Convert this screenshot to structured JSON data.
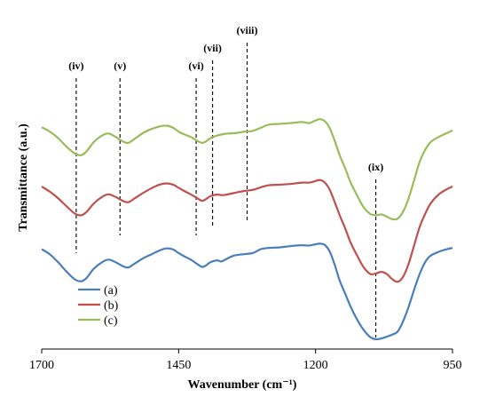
{
  "chart_data": {
    "type": "line",
    "title": "",
    "xlabel": "Wavenumber (cm⁻¹)",
    "ylabel": "Transmittance (a.u.)",
    "xlim": [
      1700,
      950
    ],
    "x_reversed": true,
    "x_ticks": [
      1700,
      1450,
      1200,
      950
    ],
    "y_ticks_shown": false,
    "grid": false,
    "legend_position": "bottom-left",
    "series": [
      {
        "name": "(a)",
        "color": "#4a7ebb",
        "points": [
          [
            1700,
            0.345
          ],
          [
            1685,
            0.325
          ],
          [
            1670,
            0.295
          ],
          [
            1655,
            0.26
          ],
          [
            1640,
            0.23
          ],
          [
            1628,
            0.222
          ],
          [
            1618,
            0.235
          ],
          [
            1605,
            0.27
          ],
          [
            1590,
            0.295
          ],
          [
            1578,
            0.305
          ],
          [
            1565,
            0.295
          ],
          [
            1552,
            0.28
          ],
          [
            1542,
            0.275
          ],
          [
            1530,
            0.29
          ],
          [
            1515,
            0.31
          ],
          [
            1500,
            0.325
          ],
          [
            1485,
            0.34
          ],
          [
            1472,
            0.348
          ],
          [
            1460,
            0.344
          ],
          [
            1450,
            0.33
          ],
          [
            1440,
            0.318
          ],
          [
            1428,
            0.305
          ],
          [
            1416,
            0.288
          ],
          [
            1407,
            0.277
          ],
          [
            1400,
            0.283
          ],
          [
            1392,
            0.295
          ],
          [
            1380,
            0.302
          ],
          [
            1372,
            0.298
          ],
          [
            1365,
            0.305
          ],
          [
            1350,
            0.32
          ],
          [
            1335,
            0.325
          ],
          [
            1315,
            0.33
          ],
          [
            1300,
            0.345
          ],
          [
            1285,
            0.35
          ],
          [
            1265,
            0.352
          ],
          [
            1245,
            0.357
          ],
          [
            1225,
            0.36
          ],
          [
            1212,
            0.359
          ],
          [
            1200,
            0.364
          ],
          [
            1192,
            0.366
          ],
          [
            1183,
            0.361
          ],
          [
            1174,
            0.335
          ],
          [
            1165,
            0.285
          ],
          [
            1156,
            0.225
          ],
          [
            1146,
            0.175
          ],
          [
            1136,
            0.125
          ],
          [
            1124,
            0.075
          ],
          [
            1112,
            0.035
          ],
          [
            1100,
            0.008
          ],
          [
            1090,
            0.0
          ],
          [
            1080,
            0.003
          ],
          [
            1070,
            0.01
          ],
          [
            1060,
            0.018
          ],
          [
            1050,
            0.03
          ],
          [
            1040,
            0.07
          ],
          [
            1030,
            0.125
          ],
          [
            1020,
            0.19
          ],
          [
            1010,
            0.25
          ],
          [
            1000,
            0.295
          ],
          [
            990,
            0.32
          ],
          [
            975,
            0.335
          ],
          [
            960,
            0.345
          ],
          [
            950,
            0.35
          ]
        ]
      },
      {
        "name": "(b)",
        "color": "#c0504d",
        "points": [
          [
            1700,
            0.585
          ],
          [
            1685,
            0.565
          ],
          [
            1670,
            0.54
          ],
          [
            1655,
            0.51
          ],
          [
            1640,
            0.482
          ],
          [
            1628,
            0.475
          ],
          [
            1618,
            0.488
          ],
          [
            1605,
            0.52
          ],
          [
            1590,
            0.545
          ],
          [
            1578,
            0.555
          ],
          [
            1565,
            0.545
          ],
          [
            1552,
            0.53
          ],
          [
            1542,
            0.525
          ],
          [
            1530,
            0.54
          ],
          [
            1515,
            0.56
          ],
          [
            1500,
            0.578
          ],
          [
            1485,
            0.592
          ],
          [
            1472,
            0.597
          ],
          [
            1460,
            0.592
          ],
          [
            1450,
            0.58
          ],
          [
            1440,
            0.568
          ],
          [
            1428,
            0.555
          ],
          [
            1416,
            0.54
          ],
          [
            1407,
            0.53
          ],
          [
            1400,
            0.537
          ],
          [
            1392,
            0.548
          ],
          [
            1380,
            0.554
          ],
          [
            1370,
            0.552
          ],
          [
            1360,
            0.555
          ],
          [
            1345,
            0.562
          ],
          [
            1330,
            0.568
          ],
          [
            1315,
            0.572
          ],
          [
            1300,
            0.582
          ],
          [
            1285,
            0.59
          ],
          [
            1265,
            0.592
          ],
          [
            1245,
            0.595
          ],
          [
            1225,
            0.6
          ],
          [
            1212,
            0.6
          ],
          [
            1200,
            0.606
          ],
          [
            1192,
            0.61
          ],
          [
            1183,
            0.6
          ],
          [
            1174,
            0.572
          ],
          [
            1165,
            0.525
          ],
          [
            1156,
            0.475
          ],
          [
            1146,
            0.425
          ],
          [
            1136,
            0.37
          ],
          [
            1124,
            0.32
          ],
          [
            1112,
            0.275
          ],
          [
            1100,
            0.25
          ],
          [
            1090,
            0.252
          ],
          [
            1080,
            0.258
          ],
          [
            1070,
            0.25
          ],
          [
            1060,
            0.23
          ],
          [
            1050,
            0.22
          ],
          [
            1040,
            0.24
          ],
          [
            1030,
            0.29
          ],
          [
            1020,
            0.36
          ],
          [
            1010,
            0.43
          ],
          [
            1000,
            0.48
          ],
          [
            990,
            0.52
          ],
          [
            975,
            0.555
          ],
          [
            960,
            0.575
          ],
          [
            950,
            0.585
          ]
        ]
      },
      {
        "name": "(c)",
        "color": "#9bbb59",
        "points": [
          [
            1700,
            0.812
          ],
          [
            1685,
            0.795
          ],
          [
            1670,
            0.77
          ],
          [
            1655,
            0.738
          ],
          [
            1640,
            0.712
          ],
          [
            1628,
            0.705
          ],
          [
            1618,
            0.72
          ],
          [
            1605,
            0.755
          ],
          [
            1590,
            0.78
          ],
          [
            1578,
            0.788
          ],
          [
            1565,
            0.775
          ],
          [
            1552,
            0.758
          ],
          [
            1542,
            0.752
          ],
          [
            1530,
            0.768
          ],
          [
            1515,
            0.79
          ],
          [
            1500,
            0.805
          ],
          [
            1485,
            0.815
          ],
          [
            1472,
            0.818
          ],
          [
            1460,
            0.81
          ],
          [
            1450,
            0.795
          ],
          [
            1440,
            0.785
          ],
          [
            1428,
            0.775
          ],
          [
            1416,
            0.76
          ],
          [
            1407,
            0.752
          ],
          [
            1400,
            0.758
          ],
          [
            1392,
            0.77
          ],
          [
            1380,
            0.78
          ],
          [
            1370,
            0.785
          ],
          [
            1360,
            0.788
          ],
          [
            1345,
            0.79
          ],
          [
            1330,
            0.795
          ],
          [
            1315,
            0.798
          ],
          [
            1300,
            0.81
          ],
          [
            1285,
            0.822
          ],
          [
            1265,
            0.825
          ],
          [
            1245,
            0.828
          ],
          [
            1225,
            0.832
          ],
          [
            1212,
            0.828
          ],
          [
            1200,
            0.838
          ],
          [
            1192,
            0.843
          ],
          [
            1183,
            0.835
          ],
          [
            1174,
            0.808
          ],
          [
            1165,
            0.76
          ],
          [
            1156,
            0.705
          ],
          [
            1146,
            0.655
          ],
          [
            1136,
            0.6
          ],
          [
            1124,
            0.55
          ],
          [
            1112,
            0.505
          ],
          [
            1100,
            0.48
          ],
          [
            1090,
            0.475
          ],
          [
            1080,
            0.478
          ],
          [
            1070,
            0.47
          ],
          [
            1060,
            0.46
          ],
          [
            1050,
            0.462
          ],
          [
            1040,
            0.49
          ],
          [
            1030,
            0.54
          ],
          [
            1020,
            0.61
          ],
          [
            1010,
            0.68
          ],
          [
            1000,
            0.725
          ],
          [
            990,
            0.755
          ],
          [
            975,
            0.775
          ],
          [
            960,
            0.79
          ],
          [
            950,
            0.8
          ]
        ]
      }
    ],
    "annotations": [
      {
        "label": "(iv)",
        "x": 1637
      },
      {
        "label": "(v)",
        "x": 1557
      },
      {
        "label": "(vi)",
        "x": 1418
      },
      {
        "label": "(vii)",
        "x": 1388
      },
      {
        "label": "(viii)",
        "x": 1325
      },
      {
        "label": "(ix)",
        "x": 1090
      }
    ]
  }
}
